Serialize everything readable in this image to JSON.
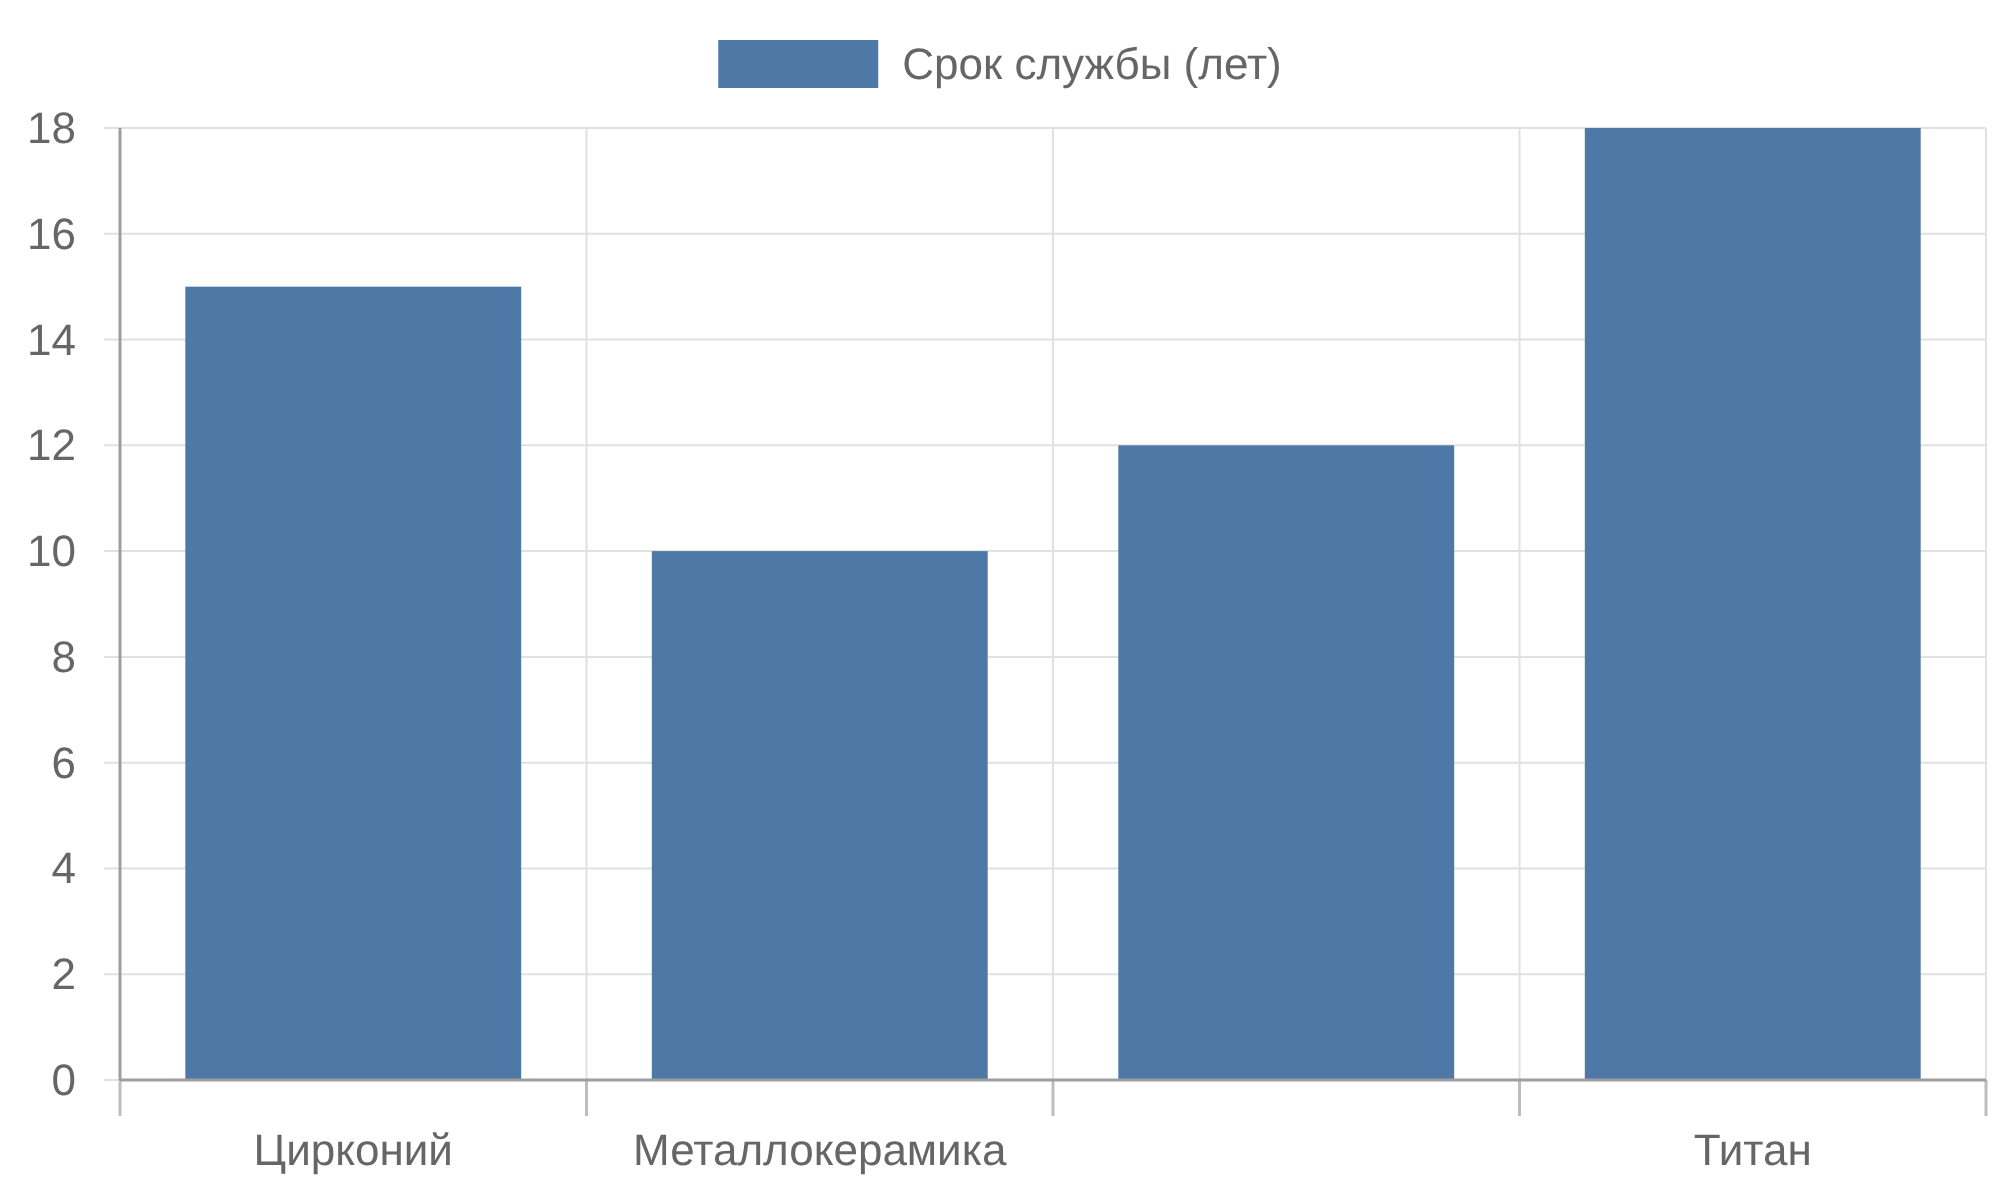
{
  "chart_data": {
    "type": "bar",
    "categories": [
      "Цирконий",
      "Металлокерамика",
      null,
      "Титан"
    ],
    "series": [
      {
        "name": "Срок службы (лет)",
        "color": "#4e79a7",
        "values": [
          15,
          10,
          12,
          18
        ]
      }
    ],
    "ylim": [
      0,
      18
    ],
    "yticks": [
      0,
      2,
      4,
      6,
      8,
      10,
      12,
      14,
      16,
      18
    ],
    "grid": true,
    "legend": "top"
  }
}
